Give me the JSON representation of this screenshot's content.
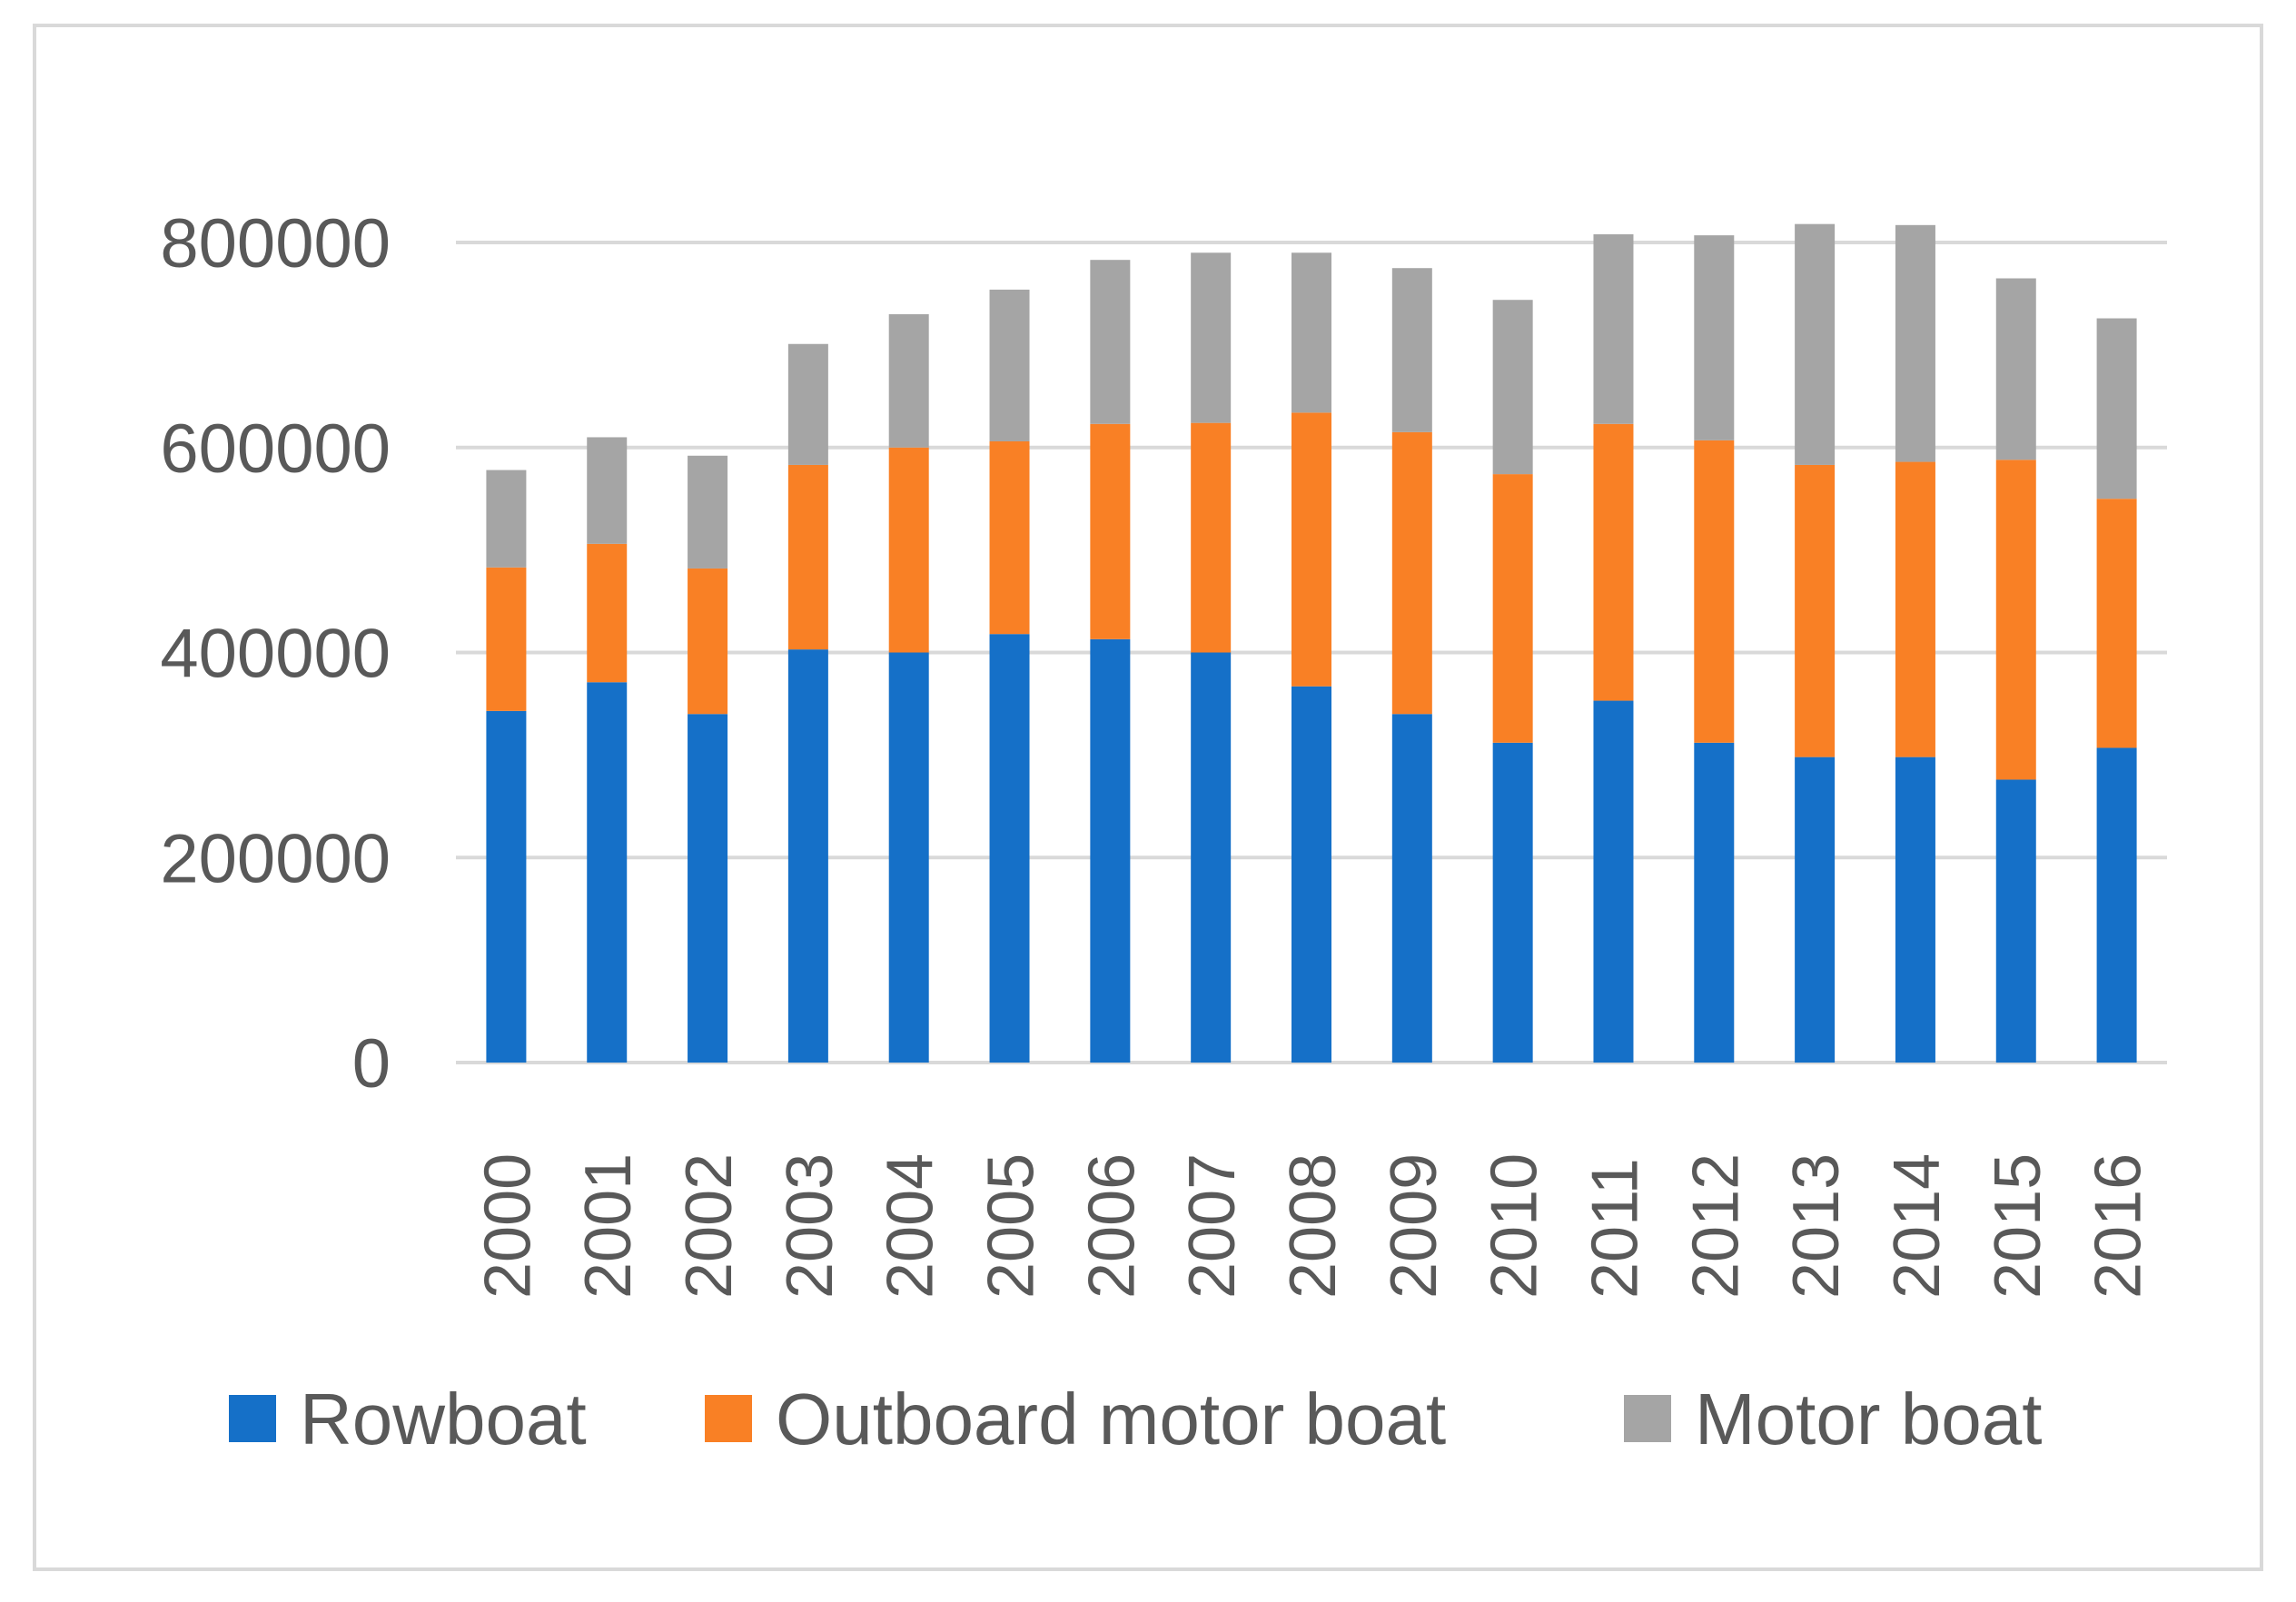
{
  "chart_data": {
    "type": "bar",
    "stacked": true,
    "title": "",
    "xlabel": "",
    "ylabel": "",
    "ylim": [
      0,
      800000
    ],
    "yticks": [
      0,
      200000,
      400000,
      600000,
      800000
    ],
    "ytick_labels": [
      "0",
      "200000",
      "400000",
      "600000",
      "800000"
    ],
    "grid": true,
    "legend_position": "bottom",
    "categories": [
      "2000",
      "2001",
      "2002",
      "2003",
      "2004",
      "2005",
      "2006",
      "2007",
      "2008",
      "2009",
      "2010",
      "2011",
      "2012",
      "2013",
      "2014",
      "2015",
      "2016"
    ],
    "series": [
      {
        "name": "Rowboat",
        "color": "#1570c8",
        "values": [
          343000,
          371000,
          340000,
          403000,
          400000,
          418000,
          413000,
          400000,
          367000,
          340000,
          312000,
          353000,
          312000,
          298000,
          298000,
          276000,
          307000
        ]
      },
      {
        "name": "Outboard motor boat",
        "color": "#f98025",
        "values": [
          140000,
          135000,
          142000,
          180000,
          200000,
          188000,
          210000,
          224000,
          267000,
          275000,
          262000,
          270000,
          295000,
          285000,
          288000,
          312000,
          243000
        ]
      },
      {
        "name": "Motor boat",
        "color": "#a5a5a5",
        "values": [
          95000,
          104000,
          110000,
          118000,
          130000,
          148000,
          160000,
          166000,
          156000,
          160000,
          170000,
          185000,
          200000,
          235000,
          231000,
          177000,
          176000
        ]
      }
    ]
  }
}
